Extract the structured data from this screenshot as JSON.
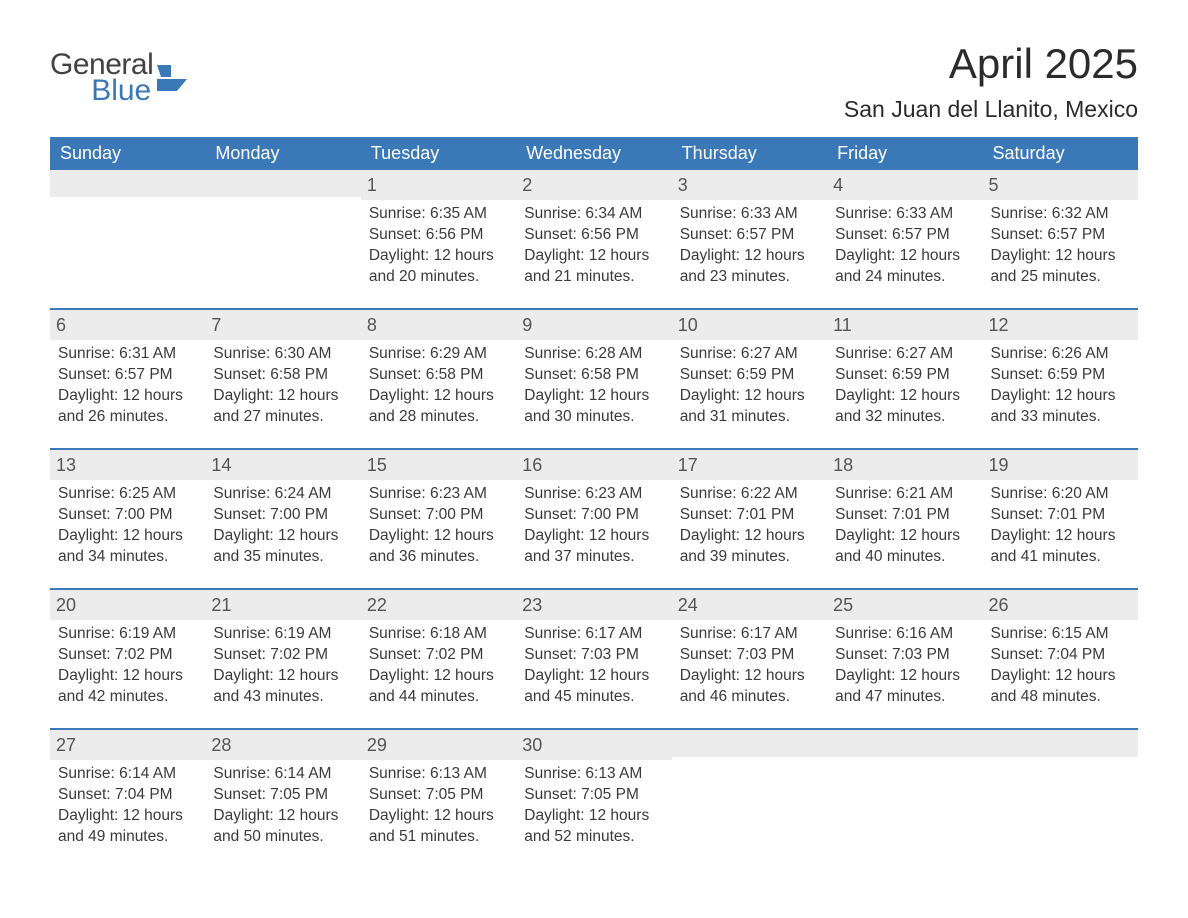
{
  "brand": {
    "word1": "General",
    "word2": "Blue",
    "color_word1": "#424242",
    "color_word2": "#3b78b8",
    "mark_color": "#3b78b8"
  },
  "title": "April 2025",
  "subtitle": "San Juan del Llanito, Mexico",
  "colors": {
    "header_bg": "#3b78b8",
    "header_text": "#ffffff",
    "daynum_bg": "#ececec",
    "daynum_text": "#555555",
    "cell_text": "#3a3a3a",
    "row_border": "#3b78b8",
    "page_bg": "#ffffff"
  },
  "typography": {
    "title_fontsize": 42,
    "subtitle_fontsize": 23,
    "header_fontsize": 18,
    "daynum_fontsize": 18,
    "body_fontsize": 15.5,
    "logo_fontsize": 30
  },
  "columns": [
    "Sunday",
    "Monday",
    "Tuesday",
    "Wednesday",
    "Thursday",
    "Friday",
    "Saturday"
  ],
  "weeks": [
    [
      {
        "day": "",
        "sunrise": "",
        "sunset": "",
        "daylight": ""
      },
      {
        "day": "",
        "sunrise": "",
        "sunset": "",
        "daylight": ""
      },
      {
        "day": "1",
        "sunrise": "Sunrise: 6:35 AM",
        "sunset": "Sunset: 6:56 PM",
        "daylight": "Daylight: 12 hours and 20 minutes."
      },
      {
        "day": "2",
        "sunrise": "Sunrise: 6:34 AM",
        "sunset": "Sunset: 6:56 PM",
        "daylight": "Daylight: 12 hours and 21 minutes."
      },
      {
        "day": "3",
        "sunrise": "Sunrise: 6:33 AM",
        "sunset": "Sunset: 6:57 PM",
        "daylight": "Daylight: 12 hours and 23 minutes."
      },
      {
        "day": "4",
        "sunrise": "Sunrise: 6:33 AM",
        "sunset": "Sunset: 6:57 PM",
        "daylight": "Daylight: 12 hours and 24 minutes."
      },
      {
        "day": "5",
        "sunrise": "Sunrise: 6:32 AM",
        "sunset": "Sunset: 6:57 PM",
        "daylight": "Daylight: 12 hours and 25 minutes."
      }
    ],
    [
      {
        "day": "6",
        "sunrise": "Sunrise: 6:31 AM",
        "sunset": "Sunset: 6:57 PM",
        "daylight": "Daylight: 12 hours and 26 minutes."
      },
      {
        "day": "7",
        "sunrise": "Sunrise: 6:30 AM",
        "sunset": "Sunset: 6:58 PM",
        "daylight": "Daylight: 12 hours and 27 minutes."
      },
      {
        "day": "8",
        "sunrise": "Sunrise: 6:29 AM",
        "sunset": "Sunset: 6:58 PM",
        "daylight": "Daylight: 12 hours and 28 minutes."
      },
      {
        "day": "9",
        "sunrise": "Sunrise: 6:28 AM",
        "sunset": "Sunset: 6:58 PM",
        "daylight": "Daylight: 12 hours and 30 minutes."
      },
      {
        "day": "10",
        "sunrise": "Sunrise: 6:27 AM",
        "sunset": "Sunset: 6:59 PM",
        "daylight": "Daylight: 12 hours and 31 minutes."
      },
      {
        "day": "11",
        "sunrise": "Sunrise: 6:27 AM",
        "sunset": "Sunset: 6:59 PM",
        "daylight": "Daylight: 12 hours and 32 minutes."
      },
      {
        "day": "12",
        "sunrise": "Sunrise: 6:26 AM",
        "sunset": "Sunset: 6:59 PM",
        "daylight": "Daylight: 12 hours and 33 minutes."
      }
    ],
    [
      {
        "day": "13",
        "sunrise": "Sunrise: 6:25 AM",
        "sunset": "Sunset: 7:00 PM",
        "daylight": "Daylight: 12 hours and 34 minutes."
      },
      {
        "day": "14",
        "sunrise": "Sunrise: 6:24 AM",
        "sunset": "Sunset: 7:00 PM",
        "daylight": "Daylight: 12 hours and 35 minutes."
      },
      {
        "day": "15",
        "sunrise": "Sunrise: 6:23 AM",
        "sunset": "Sunset: 7:00 PM",
        "daylight": "Daylight: 12 hours and 36 minutes."
      },
      {
        "day": "16",
        "sunrise": "Sunrise: 6:23 AM",
        "sunset": "Sunset: 7:00 PM",
        "daylight": "Daylight: 12 hours and 37 minutes."
      },
      {
        "day": "17",
        "sunrise": "Sunrise: 6:22 AM",
        "sunset": "Sunset: 7:01 PM",
        "daylight": "Daylight: 12 hours and 39 minutes."
      },
      {
        "day": "18",
        "sunrise": "Sunrise: 6:21 AM",
        "sunset": "Sunset: 7:01 PM",
        "daylight": "Daylight: 12 hours and 40 minutes."
      },
      {
        "day": "19",
        "sunrise": "Sunrise: 6:20 AM",
        "sunset": "Sunset: 7:01 PM",
        "daylight": "Daylight: 12 hours and 41 minutes."
      }
    ],
    [
      {
        "day": "20",
        "sunrise": "Sunrise: 6:19 AM",
        "sunset": "Sunset: 7:02 PM",
        "daylight": "Daylight: 12 hours and 42 minutes."
      },
      {
        "day": "21",
        "sunrise": "Sunrise: 6:19 AM",
        "sunset": "Sunset: 7:02 PM",
        "daylight": "Daylight: 12 hours and 43 minutes."
      },
      {
        "day": "22",
        "sunrise": "Sunrise: 6:18 AM",
        "sunset": "Sunset: 7:02 PM",
        "daylight": "Daylight: 12 hours and 44 minutes."
      },
      {
        "day": "23",
        "sunrise": "Sunrise: 6:17 AM",
        "sunset": "Sunset: 7:03 PM",
        "daylight": "Daylight: 12 hours and 45 minutes."
      },
      {
        "day": "24",
        "sunrise": "Sunrise: 6:17 AM",
        "sunset": "Sunset: 7:03 PM",
        "daylight": "Daylight: 12 hours and 46 minutes."
      },
      {
        "day": "25",
        "sunrise": "Sunrise: 6:16 AM",
        "sunset": "Sunset: 7:03 PM",
        "daylight": "Daylight: 12 hours and 47 minutes."
      },
      {
        "day": "26",
        "sunrise": "Sunrise: 6:15 AM",
        "sunset": "Sunset: 7:04 PM",
        "daylight": "Daylight: 12 hours and 48 minutes."
      }
    ],
    [
      {
        "day": "27",
        "sunrise": "Sunrise: 6:14 AM",
        "sunset": "Sunset: 7:04 PM",
        "daylight": "Daylight: 12 hours and 49 minutes."
      },
      {
        "day": "28",
        "sunrise": "Sunrise: 6:14 AM",
        "sunset": "Sunset: 7:05 PM",
        "daylight": "Daylight: 12 hours and 50 minutes."
      },
      {
        "day": "29",
        "sunrise": "Sunrise: 6:13 AM",
        "sunset": "Sunset: 7:05 PM",
        "daylight": "Daylight: 12 hours and 51 minutes."
      },
      {
        "day": "30",
        "sunrise": "Sunrise: 6:13 AM",
        "sunset": "Sunset: 7:05 PM",
        "daylight": "Daylight: 12 hours and 52 minutes."
      },
      {
        "day": "",
        "sunrise": "",
        "sunset": "",
        "daylight": ""
      },
      {
        "day": "",
        "sunrise": "",
        "sunset": "",
        "daylight": ""
      },
      {
        "day": "",
        "sunrise": "",
        "sunset": "",
        "daylight": ""
      }
    ]
  ]
}
